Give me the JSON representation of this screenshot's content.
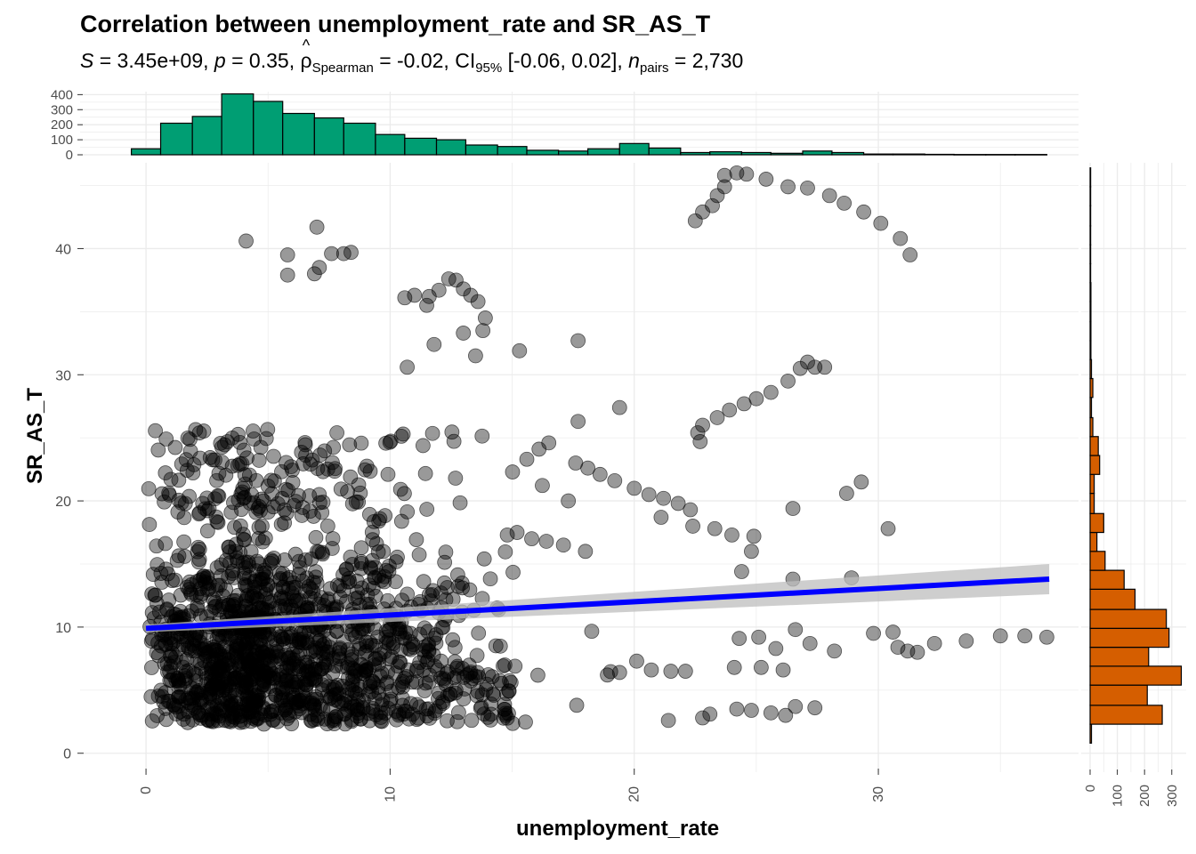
{
  "title": "Correlation between unemployment_rate and SR_AS_T",
  "subtitle": {
    "s_label": "S",
    "s_value": "= 3.45e+09,",
    "p_label": "p",
    "p_value": "= 0.35,",
    "hat": "^",
    "rho_symbol": "ρ",
    "rho_sub": "Spearman",
    "rho_value": "= -0.02, CI",
    "ci_sub": "95%",
    "ci_value": "[-0.06, 0.02],",
    "n_label": "n",
    "n_sub": "pairs",
    "n_value": "= 2,730"
  },
  "colors": {
    "points": "#000000",
    "regression_line": "#0000FF",
    "ci_band": "#BEBEBE",
    "top_histogram": "#009E73",
    "right_histogram": "#D55E00",
    "grid": "#EBEBEB"
  },
  "chart_data": [
    {
      "type": "scatter",
      "title": "Correlation between unemployment_rate and SR_AS_T",
      "xlabel": "unemployment_rate",
      "ylabel": "SR_AS_T",
      "xlim": [
        -2.7,
        38.2
      ],
      "ylim": [
        -1.5,
        46.8
      ],
      "x_ticks": [
        "0",
        "10",
        "20",
        "30"
      ],
      "y_ticks": [
        "0",
        "10",
        "20",
        "30",
        "40"
      ],
      "regression": {
        "x": [
          0,
          37
        ],
        "y": [
          9.9,
          13.8
        ],
        "ci_lo": [
          9.6,
          12.6
        ],
        "ci_hi": [
          10.2,
          15.0
        ]
      },
      "visible_points": [
        [
          23.7,
          45.8
        ],
        [
          24.2,
          46.0
        ],
        [
          24.6,
          45.9
        ],
        [
          25.4,
          45.5
        ],
        [
          26.3,
          44.9
        ],
        [
          27.1,
          44.8
        ],
        [
          28.0,
          44.2
        ],
        [
          28.6,
          43.6
        ],
        [
          29.4,
          42.9
        ],
        [
          30.1,
          42.0
        ],
        [
          30.9,
          40.8
        ],
        [
          31.3,
          39.5
        ],
        [
          22.5,
          42.2
        ],
        [
          22.8,
          42.9
        ],
        [
          23.2,
          43.4
        ],
        [
          23.4,
          44.2
        ],
        [
          23.7,
          44.9
        ],
        [
          4.1,
          40.6
        ],
        [
          7.0,
          41.7
        ],
        [
          5.8,
          39.5
        ],
        [
          5.8,
          37.9
        ],
        [
          6.9,
          38.0
        ],
        [
          7.1,
          38.5
        ],
        [
          7.6,
          39.6
        ],
        [
          8.1,
          39.6
        ],
        [
          8.4,
          39.7
        ],
        [
          10.6,
          36.1
        ],
        [
          11.0,
          36.3
        ],
        [
          11.5,
          35.5
        ],
        [
          11.6,
          36.2
        ],
        [
          12.0,
          36.7
        ],
        [
          12.4,
          37.6
        ],
        [
          12.7,
          37.5
        ],
        [
          13.0,
          36.8
        ],
        [
          13.3,
          36.3
        ],
        [
          13.6,
          35.8
        ],
        [
          13.9,
          34.5
        ],
        [
          13.8,
          33.5
        ],
        [
          13.0,
          33.3
        ],
        [
          13.5,
          31.5
        ],
        [
          11.8,
          32.4
        ],
        [
          10.7,
          30.6
        ],
        [
          15.3,
          31.9
        ],
        [
          17.7,
          32.7
        ],
        [
          19.4,
          27.4
        ],
        [
          22.6,
          25.4
        ],
        [
          22.7,
          24.7
        ],
        [
          22.8,
          26.0
        ],
        [
          23.4,
          26.6
        ],
        [
          23.9,
          27.2
        ],
        [
          24.5,
          27.7
        ],
        [
          25.0,
          28.1
        ],
        [
          25.6,
          28.6
        ],
        [
          26.3,
          29.5
        ],
        [
          26.8,
          30.5
        ],
        [
          27.1,
          31.0
        ],
        [
          27.4,
          30.6
        ],
        [
          27.8,
          30.6
        ],
        [
          17.7,
          26.3
        ],
        [
          16.5,
          24.6
        ],
        [
          16.1,
          24.1
        ],
        [
          15.6,
          23.3
        ],
        [
          17.6,
          23.0
        ],
        [
          18.1,
          22.6
        ],
        [
          18.6,
          22.1
        ],
        [
          19.2,
          21.6
        ],
        [
          20.0,
          21.0
        ],
        [
          20.6,
          20.5
        ],
        [
          21.2,
          20.2
        ],
        [
          21.8,
          19.8
        ],
        [
          22.3,
          19.3
        ],
        [
          21.1,
          18.7
        ],
        [
          22.4,
          18.0
        ],
        [
          23.3,
          17.8
        ],
        [
          24.0,
          17.3
        ],
        [
          24.9,
          17.2
        ],
        [
          26.5,
          19.4
        ],
        [
          28.7,
          20.6
        ],
        [
          29.3,
          21.5
        ],
        [
          30.4,
          17.8
        ],
        [
          17.3,
          20.0
        ],
        [
          15.2,
          17.5
        ],
        [
          14.8,
          17.3
        ],
        [
          15.8,
          17.0
        ],
        [
          16.4,
          16.8
        ],
        [
          17.1,
          16.5
        ],
        [
          18.0,
          16.0
        ],
        [
          24.8,
          16.0
        ],
        [
          24.4,
          14.4
        ],
        [
          26.5,
          13.8
        ],
        [
          28.9,
          13.9
        ],
        [
          36.9,
          9.2
        ],
        [
          36.0,
          9.3
        ],
        [
          35.0,
          9.3
        ],
        [
          33.6,
          8.9
        ],
        [
          32.3,
          8.7
        ],
        [
          31.6,
          8.0
        ],
        [
          31.2,
          8.1
        ],
        [
          30.8,
          8.4
        ],
        [
          30.6,
          9.6
        ],
        [
          29.8,
          9.5
        ],
        [
          28.2,
          8.1
        ],
        [
          27.2,
          8.7
        ],
        [
          26.6,
          9.8
        ],
        [
          25.8,
          8.3
        ],
        [
          25.1,
          9.2
        ],
        [
          24.3,
          9.1
        ],
        [
          18.9,
          6.2
        ],
        [
          19.4,
          6.4
        ],
        [
          20.1,
          7.3
        ],
        [
          20.7,
          6.6
        ],
        [
          21.5,
          6.5
        ],
        [
          22.1,
          6.5
        ],
        [
          24.1,
          6.8
        ],
        [
          25.2,
          6.8
        ],
        [
          26.1,
          6.6
        ],
        [
          27.4,
          3.6
        ],
        [
          26.6,
          3.7
        ],
        [
          26.2,
          3.0
        ],
        [
          25.6,
          3.2
        ],
        [
          24.8,
          3.4
        ],
        [
          24.2,
          3.5
        ],
        [
          23.1,
          3.1
        ],
        [
          22.8,
          2.8
        ],
        [
          21.4,
          2.6
        ]
      ],
      "note": "Dense cloud of ~2,730 points concentrated at unemployment_rate 0-20 and SR_AS_T 2-26"
    },
    {
      "type": "bar",
      "title": "Marginal histogram of unemployment_rate",
      "bin_edges": [
        -0.6,
        0.6,
        1.9,
        3.1,
        4.4,
        5.6,
        6.9,
        8.1,
        9.4,
        10.6,
        11.9,
        13.1,
        14.4,
        15.6,
        16.9,
        18.1,
        19.4,
        20.6,
        21.9,
        23.1,
        24.4,
        25.6,
        26.9,
        28.1,
        29.4,
        30.6,
        31.9,
        33.1,
        34.4,
        35.6,
        36.9
      ],
      "values": [
        40,
        210,
        255,
        405,
        355,
        275,
        245,
        210,
        135,
        110,
        100,
        65,
        55,
        30,
        25,
        40,
        75,
        45,
        15,
        20,
        15,
        10,
        25,
        15,
        5,
        5,
        3,
        2,
        2,
        2
      ],
      "ylim": [
        0,
        420
      ],
      "y_ticks": [
        0,
        100,
        200,
        300,
        400
      ],
      "y_tick_labels": [
        "0",
        "100",
        "200",
        "300",
        "400"
      ]
    },
    {
      "type": "bar",
      "orientation": "horizontal",
      "title": "Marginal histogram of SR_AS_T",
      "bin_edges": [
        0.8,
        2.3,
        3.8,
        5.4,
        6.9,
        8.4,
        9.9,
        11.4,
        13.0,
        14.5,
        16.0,
        17.5,
        19.0,
        20.6,
        22.1,
        23.6,
        25.1,
        26.6,
        28.2,
        29.7,
        31.2,
        32.7,
        34.2,
        35.8,
        37.3,
        38.8,
        40.3,
        41.8,
        43.4,
        44.9,
        46.4
      ],
      "values": [
        5,
        265,
        210,
        335,
        215,
        290,
        280,
        165,
        125,
        55,
        25,
        50,
        15,
        15,
        35,
        30,
        10,
        5,
        10,
        5,
        3,
        3,
        3,
        3,
        2,
        2,
        2,
        2,
        2,
        2
      ],
      "xlim": [
        0,
        340
      ],
      "x_ticks": [
        0,
        100,
        200,
        300
      ],
      "x_tick_labels": [
        "0",
        "100",
        "200",
        "300"
      ]
    }
  ]
}
